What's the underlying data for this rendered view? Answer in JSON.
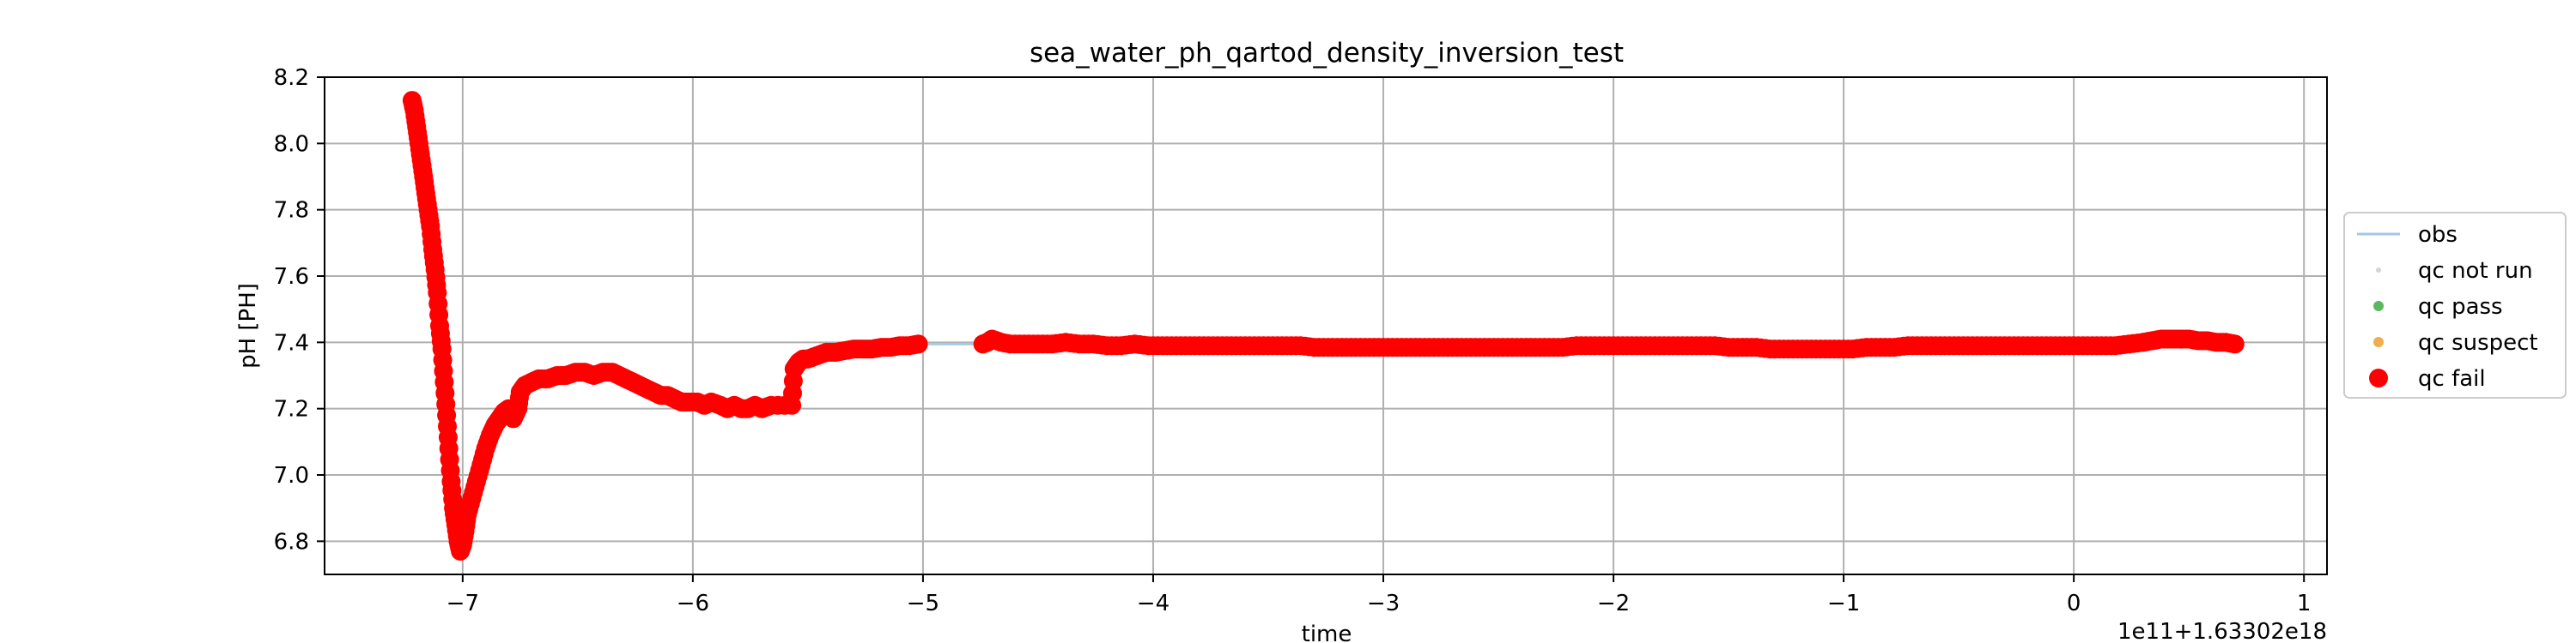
{
  "chart_data": {
    "type": "scatter",
    "title": "sea_water_ph_qartod_density_inversion_test",
    "xlabel": "time",
    "ylabel": "pH [PH]",
    "offset_text": "1e11+1.63302e18",
    "xlim": [
      -7.6,
      1.1
    ],
    "ylim": [
      6.7,
      8.2
    ],
    "xticks": [
      -7,
      -6,
      -5,
      -4,
      -3,
      -2,
      -1,
      0,
      1
    ],
    "xtick_labels": [
      "−7",
      "−6",
      "−5",
      "−4",
      "−3",
      "−2",
      "−1",
      "0",
      "1"
    ],
    "yticks": [
      6.8,
      7.0,
      7.2,
      7.4,
      7.6,
      7.8,
      8.0,
      8.2
    ],
    "ytick_labels": [
      "6.8",
      "7.0",
      "7.2",
      "7.4",
      "7.6",
      "7.8",
      "8.0",
      "8.2"
    ],
    "grid": true,
    "legend_position": "right, outside plot",
    "legend": [
      {
        "label": "obs",
        "kind": "line",
        "color": "#a6c8e0"
      },
      {
        "label": "qc not run",
        "kind": "dot-small",
        "color": "#d3d3d3"
      },
      {
        "label": "qc pass",
        "kind": "dot",
        "color": "#5cb85c"
      },
      {
        "label": "qc suspect",
        "kind": "dot",
        "color": "#f0ad4e"
      },
      {
        "label": "qc fail",
        "kind": "dot-large",
        "color": "#ff0000"
      }
    ],
    "series": [
      {
        "name": "obs",
        "style": "line",
        "color": "#a6c8e0",
        "points": [
          [
            -7.22,
            8.13
          ],
          [
            -7.2,
            8.05
          ],
          [
            -7.18,
            7.95
          ],
          [
            -7.16,
            7.85
          ],
          [
            -7.14,
            7.75
          ],
          [
            -7.12,
            7.62
          ],
          [
            -7.1,
            7.45
          ],
          [
            -7.08,
            7.25
          ],
          [
            -7.06,
            7.05
          ],
          [
            -7.04,
            6.9
          ],
          [
            -7.02,
            6.8
          ],
          [
            -7.0,
            6.78
          ],
          [
            -6.98,
            6.85
          ],
          [
            -6.95,
            6.95
          ],
          [
            -6.92,
            7.05
          ],
          [
            -6.88,
            7.12
          ],
          [
            -6.84,
            7.17
          ],
          [
            -6.8,
            7.2
          ],
          [
            -6.77,
            7.17
          ],
          [
            -6.75,
            7.25
          ],
          [
            -6.72,
            7.28
          ],
          [
            -6.65,
            7.29
          ],
          [
            -6.55,
            7.3
          ],
          [
            -6.45,
            7.31
          ],
          [
            -6.35,
            7.31
          ],
          [
            -6.28,
            7.29
          ],
          [
            -6.2,
            7.26
          ],
          [
            -6.12,
            7.24
          ],
          [
            -6.05,
            7.22
          ],
          [
            -5.95,
            7.22
          ],
          [
            -5.85,
            7.21
          ],
          [
            -5.75,
            7.2
          ],
          [
            -5.68,
            7.21
          ],
          [
            -5.62,
            7.21
          ],
          [
            -5.57,
            7.21
          ],
          [
            -5.56,
            7.32
          ],
          [
            -5.52,
            7.35
          ],
          [
            -5.45,
            7.36
          ],
          [
            -5.35,
            7.37
          ],
          [
            -5.25,
            7.38
          ],
          [
            -5.15,
            7.385
          ],
          [
            -5.05,
            7.39
          ],
          [
            -5.0,
            7.395
          ],
          [
            -4.74,
            7.395
          ],
          [
            -4.7,
            7.41
          ],
          [
            -4.6,
            7.395
          ],
          [
            -4.4,
            7.395
          ],
          [
            -4.2,
            7.39
          ],
          [
            -4.0,
            7.39
          ],
          [
            -3.8,
            7.39
          ],
          [
            -3.6,
            7.39
          ],
          [
            -3.4,
            7.39
          ],
          [
            -3.2,
            7.385
          ],
          [
            -3.0,
            7.385
          ],
          [
            -2.8,
            7.385
          ],
          [
            -2.6,
            7.385
          ],
          [
            -2.4,
            7.385
          ],
          [
            -2.2,
            7.385
          ],
          [
            -2.0,
            7.39
          ],
          [
            -1.8,
            7.39
          ],
          [
            -1.6,
            7.39
          ],
          [
            -1.4,
            7.385
          ],
          [
            -1.2,
            7.38
          ],
          [
            -1.0,
            7.38
          ],
          [
            -0.8,
            7.385
          ],
          [
            -0.6,
            7.39
          ],
          [
            -0.4,
            7.39
          ],
          [
            -0.2,
            7.39
          ],
          [
            0.0,
            7.39
          ],
          [
            0.15,
            7.39
          ],
          [
            0.3,
            7.4
          ],
          [
            0.4,
            7.41
          ],
          [
            0.5,
            7.41
          ],
          [
            0.6,
            7.405
          ],
          [
            0.7,
            7.395
          ]
        ]
      },
      {
        "name": "qc fail",
        "style": "markers",
        "color": "#ff0000",
        "points": [
          [
            -7.22,
            8.13
          ],
          [
            -7.21,
            8.1
          ],
          [
            -7.2,
            8.05
          ],
          [
            -7.19,
            8.0
          ],
          [
            -7.18,
            7.95
          ],
          [
            -7.17,
            7.9
          ],
          [
            -7.16,
            7.85
          ],
          [
            -7.15,
            7.8
          ],
          [
            -7.14,
            7.75
          ],
          [
            -7.13,
            7.68
          ],
          [
            -7.12,
            7.62
          ],
          [
            -7.11,
            7.55
          ],
          [
            -7.1,
            7.45
          ],
          [
            -7.09,
            7.38
          ],
          [
            -7.08,
            7.28
          ],
          [
            -7.07,
            7.18
          ],
          [
            -7.06,
            7.08
          ],
          [
            -7.05,
            6.98
          ],
          [
            -7.04,
            6.9
          ],
          [
            -7.03,
            6.85
          ],
          [
            -7.02,
            6.8
          ],
          [
            -7.01,
            6.77
          ],
          [
            -7.0,
            6.79
          ],
          [
            -6.99,
            6.83
          ],
          [
            -6.98,
            6.88
          ],
          [
            -6.96,
            6.93
          ],
          [
            -6.94,
            6.98
          ],
          [
            -6.92,
            7.03
          ],
          [
            -6.9,
            7.08
          ],
          [
            -6.88,
            7.12
          ],
          [
            -6.86,
            7.15
          ],
          [
            -6.84,
            7.17
          ],
          [
            -6.82,
            7.19
          ],
          [
            -6.8,
            7.2
          ],
          [
            -6.78,
            7.17
          ],
          [
            -6.76,
            7.2
          ],
          [
            -6.75,
            7.25
          ],
          [
            -6.73,
            7.27
          ],
          [
            -6.7,
            7.28
          ],
          [
            -6.67,
            7.29
          ],
          [
            -6.63,
            7.29
          ],
          [
            -6.59,
            7.3
          ],
          [
            -6.55,
            7.3
          ],
          [
            -6.51,
            7.31
          ],
          [
            -6.47,
            7.31
          ],
          [
            -6.43,
            7.3
          ],
          [
            -6.39,
            7.31
          ],
          [
            -6.35,
            7.31
          ],
          [
            -6.32,
            7.3
          ],
          [
            -6.29,
            7.29
          ],
          [
            -6.26,
            7.28
          ],
          [
            -6.23,
            7.27
          ],
          [
            -6.2,
            7.26
          ],
          [
            -6.17,
            7.25
          ],
          [
            -6.14,
            7.24
          ],
          [
            -6.11,
            7.24
          ],
          [
            -6.08,
            7.23
          ],
          [
            -6.05,
            7.22
          ],
          [
            -6.02,
            7.22
          ],
          [
            -5.98,
            7.22
          ],
          [
            -5.95,
            7.21
          ],
          [
            -5.92,
            7.22
          ],
          [
            -5.88,
            7.21
          ],
          [
            -5.85,
            7.2
          ],
          [
            -5.82,
            7.21
          ],
          [
            -5.79,
            7.2
          ],
          [
            -5.76,
            7.2
          ],
          [
            -5.73,
            7.21
          ],
          [
            -5.7,
            7.2
          ],
          [
            -5.66,
            7.21
          ],
          [
            -5.57,
            7.21
          ],
          [
            -5.56,
            7.32
          ],
          [
            -5.54,
            7.34
          ],
          [
            -5.52,
            7.35
          ],
          [
            -5.5,
            7.35
          ],
          [
            -5.46,
            7.36
          ],
          [
            -5.42,
            7.37
          ],
          [
            -5.38,
            7.37
          ],
          [
            -5.34,
            7.375
          ],
          [
            -5.3,
            7.38
          ],
          [
            -5.26,
            7.38
          ],
          [
            -5.22,
            7.38
          ],
          [
            -5.18,
            7.385
          ],
          [
            -5.14,
            7.385
          ],
          [
            -5.1,
            7.39
          ],
          [
            -5.06,
            7.39
          ],
          [
            -5.02,
            7.395
          ],
          [
            -4.74,
            7.395
          ],
          [
            -4.72,
            7.4
          ],
          [
            -4.7,
            7.41
          ],
          [
            -4.66,
            7.4
          ],
          [
            -4.62,
            7.395
          ],
          [
            -4.56,
            7.395
          ],
          [
            -4.5,
            7.395
          ],
          [
            -4.44,
            7.395
          ],
          [
            -4.38,
            7.4
          ],
          [
            -4.32,
            7.395
          ],
          [
            -4.26,
            7.395
          ],
          [
            -4.2,
            7.39
          ],
          [
            -4.14,
            7.39
          ],
          [
            -4.08,
            7.395
          ],
          [
            -4.02,
            7.39
          ],
          [
            -3.96,
            7.39
          ],
          [
            -3.9,
            7.39
          ],
          [
            -3.84,
            7.39
          ],
          [
            -3.78,
            7.39
          ],
          [
            -3.72,
            7.39
          ],
          [
            -3.66,
            7.39
          ],
          [
            -3.6,
            7.39
          ],
          [
            -3.54,
            7.39
          ],
          [
            -3.48,
            7.39
          ],
          [
            -3.42,
            7.39
          ],
          [
            -3.36,
            7.39
          ],
          [
            -3.3,
            7.385
          ],
          [
            -3.24,
            7.385
          ],
          [
            -3.18,
            7.385
          ],
          [
            -3.12,
            7.385
          ],
          [
            -3.06,
            7.385
          ],
          [
            -3.0,
            7.385
          ],
          [
            -2.94,
            7.385
          ],
          [
            -2.88,
            7.385
          ],
          [
            -2.82,
            7.385
          ],
          [
            -2.76,
            7.385
          ],
          [
            -2.7,
            7.385
          ],
          [
            -2.64,
            7.385
          ],
          [
            -2.58,
            7.385
          ],
          [
            -2.52,
            7.385
          ],
          [
            -2.46,
            7.385
          ],
          [
            -2.4,
            7.385
          ],
          [
            -2.34,
            7.385
          ],
          [
            -2.28,
            7.385
          ],
          [
            -2.22,
            7.385
          ],
          [
            -2.16,
            7.39
          ],
          [
            -2.1,
            7.39
          ],
          [
            -2.04,
            7.39
          ],
          [
            -1.98,
            7.39
          ],
          [
            -1.92,
            7.39
          ],
          [
            -1.86,
            7.39
          ],
          [
            -1.8,
            7.39
          ],
          [
            -1.74,
            7.39
          ],
          [
            -1.68,
            7.39
          ],
          [
            -1.62,
            7.39
          ],
          [
            -1.56,
            7.39
          ],
          [
            -1.5,
            7.385
          ],
          [
            -1.44,
            7.385
          ],
          [
            -1.38,
            7.385
          ],
          [
            -1.32,
            7.38
          ],
          [
            -1.26,
            7.38
          ],
          [
            -1.2,
            7.38
          ],
          [
            -1.14,
            7.38
          ],
          [
            -1.08,
            7.38
          ],
          [
            -1.02,
            7.38
          ],
          [
            -0.96,
            7.38
          ],
          [
            -0.9,
            7.385
          ],
          [
            -0.84,
            7.385
          ],
          [
            -0.78,
            7.385
          ],
          [
            -0.72,
            7.39
          ],
          [
            -0.66,
            7.39
          ],
          [
            -0.6,
            7.39
          ],
          [
            -0.54,
            7.39
          ],
          [
            -0.48,
            7.39
          ],
          [
            -0.42,
            7.39
          ],
          [
            -0.36,
            7.39
          ],
          [
            -0.3,
            7.39
          ],
          [
            -0.24,
            7.39
          ],
          [
            -0.18,
            7.39
          ],
          [
            -0.12,
            7.39
          ],
          [
            -0.06,
            7.39
          ],
          [
            0.0,
            7.39
          ],
          [
            0.06,
            7.39
          ],
          [
            0.12,
            7.39
          ],
          [
            0.18,
            7.39
          ],
          [
            0.24,
            7.395
          ],
          [
            0.3,
            7.4
          ],
          [
            0.34,
            7.405
          ],
          [
            0.38,
            7.41
          ],
          [
            0.42,
            7.41
          ],
          [
            0.46,
            7.41
          ],
          [
            0.5,
            7.41
          ],
          [
            0.54,
            7.405
          ],
          [
            0.58,
            7.405
          ],
          [
            0.62,
            7.4
          ],
          [
            0.66,
            7.4
          ],
          [
            0.7,
            7.395
          ]
        ]
      }
    ]
  }
}
